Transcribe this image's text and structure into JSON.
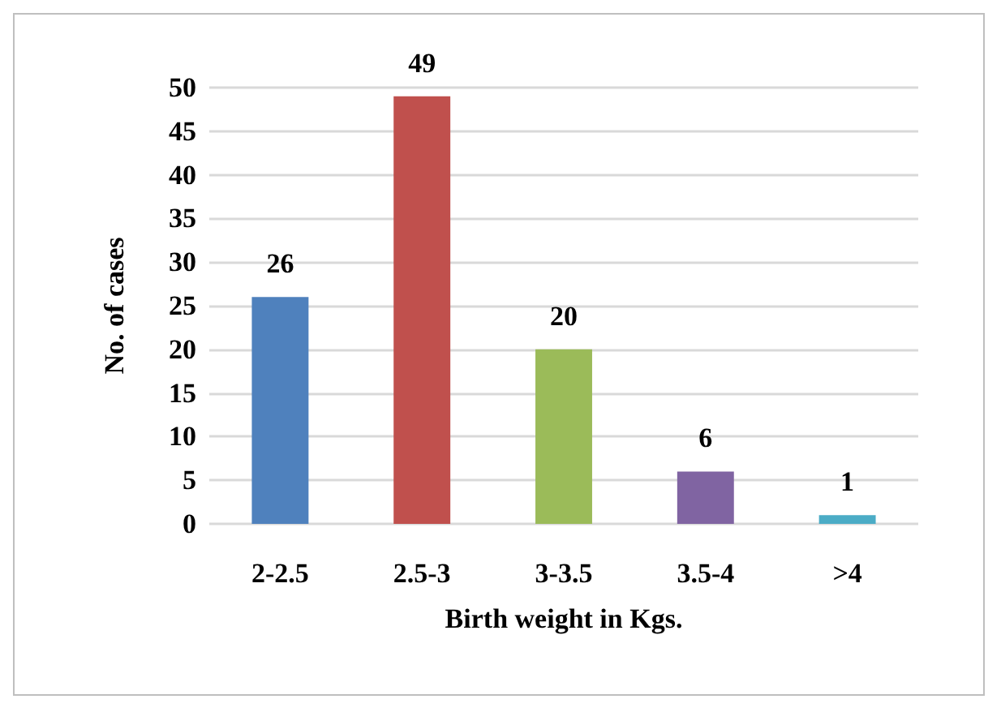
{
  "chart_data": {
    "type": "bar",
    "xlabel": "Birth weight in Kgs.",
    "ylabel": "No. of cases",
    "categories": [
      "2-2.5",
      "2.5-3",
      "3-3.5",
      "3.5-4",
      ">4"
    ],
    "values": [
      26,
      49,
      20,
      6,
      1
    ],
    "colors": [
      "#4f81bd",
      "#c0504d",
      "#9bbb59",
      "#8064a2",
      "#4bacc6"
    ],
    "ylim": [
      0,
      50
    ],
    "yticks": [
      0,
      5,
      10,
      15,
      20,
      25,
      30,
      35,
      40,
      45,
      50
    ],
    "grid": "y",
    "data_labels": true
  }
}
